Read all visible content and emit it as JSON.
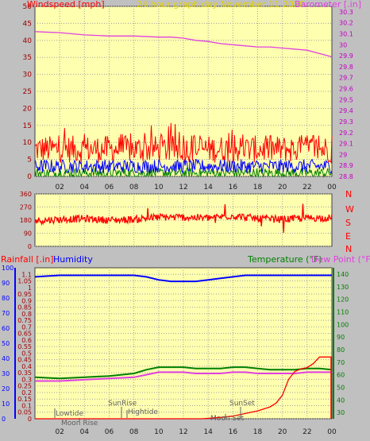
{
  "colors": {
    "page": "#c0c0c0",
    "plot": "#ffffb0",
    "grid": "#a0a0a0",
    "pink": "#e040e0",
    "red": "#ff0000",
    "blue": "#0000ff",
    "green": "#008000",
    "yellow": "#e0d000",
    "darkred": "#a00000",
    "black": "#000000",
    "darkpink": "#c000c0",
    "tick": "#202020",
    "event": "#606060"
  },
  "header": {
    "left": "Windspeed [mph]",
    "center": "24 hour graph day   November 11 2020",
    "right": "Barometer [.in]"
  },
  "direction_labels": [
    "N",
    "W",
    "S",
    "E",
    "N"
  ],
  "bottom_header": {
    "rain": "Rainfall [.in]",
    "humidity": "Humidity",
    "temperature": "Temperature (°F)",
    "dewpoint": "Dew Point (°F)"
  },
  "events": {
    "lowtide": "Lowtide",
    "moonrise": "Moon Rise",
    "sunrise": "SunRise",
    "hightide": "Hightide",
    "sunset": "SunSet",
    "moonset": "Moon Set"
  },
  "chart_data": [
    {
      "type": "line",
      "name": "wind-barometer",
      "x_ticks": [
        "02",
        "04",
        "06",
        "08",
        "10",
        "12",
        "14",
        "16",
        "18",
        "20",
        "22",
        "00"
      ],
      "y_left": {
        "label": "Windspeed [mph]",
        "ticks": [
          "0",
          "5",
          "10",
          "15",
          "20",
          "25",
          "30",
          "35",
          "40",
          "45",
          "50"
        ],
        "range": [
          0,
          50
        ]
      },
      "y_right": {
        "label": "Barometer [.in]",
        "ticks": [
          "28.8",
          "28.9",
          "29",
          "29.1",
          "29.2",
          "29.3",
          "29.4",
          "29.5",
          "29.6",
          "29.7",
          "29.8",
          "29.9",
          "30",
          "30.1",
          "30.2",
          "30.3"
        ],
        "range": [
          28.8,
          30.35
        ]
      },
      "series": [
        {
          "name": "Barometer",
          "color": "#e040e0",
          "axis": "right",
          "x": [
            0,
            2,
            4,
            6,
            8,
            10,
            11,
            12,
            13,
            14,
            15,
            16,
            17,
            18,
            19,
            20,
            21,
            22,
            23,
            24
          ],
          "y": [
            30.12,
            30.11,
            30.09,
            30.08,
            30.08,
            30.07,
            30.07,
            30.06,
            30.04,
            30.03,
            30.01,
            30.0,
            29.99,
            29.98,
            29.98,
            29.97,
            29.96,
            29.95,
            29.92,
            29.89
          ]
        },
        {
          "name": "Wind gust",
          "color": "#ff0000",
          "axis": "left",
          "base": 8,
          "range": 4,
          "peaks": [
            12,
            16,
            14,
            13,
            15,
            16,
            12,
            14,
            13,
            12,
            13,
            12
          ]
        },
        {
          "name": "Wind average",
          "color": "#0000ff",
          "axis": "left",
          "base": 3,
          "range": 2
        },
        {
          "name": "Wind low",
          "color": "#008000",
          "axis": "left",
          "base": 1,
          "range": 1.5
        }
      ],
      "ylim": [
        0,
        50
      ]
    },
    {
      "type": "line",
      "name": "wind-direction",
      "y_ticks": [
        "360",
        "270",
        "180",
        "90",
        "0"
      ],
      "ylim": [
        0,
        360
      ],
      "series": [
        {
          "name": "Wind direction",
          "color": "#ff0000",
          "x": [
            0,
            2,
            4,
            6,
            8,
            10,
            12,
            14,
            16,
            18,
            20,
            22,
            24
          ],
          "y": [
            175,
            185,
            190,
            180,
            185,
            200,
            200,
            195,
            210,
            190,
            185,
            195,
            195
          ]
        }
      ]
    },
    {
      "type": "line",
      "name": "rain-humidity-temperature",
      "x_ticks": [
        "02",
        "04",
        "06",
        "08",
        "10",
        "12",
        "14",
        "16",
        "18",
        "20",
        "22",
        "00"
      ],
      "y_humidity": {
        "ticks": [
          "0",
          "10",
          "20",
          "30",
          "40",
          "50",
          "60",
          "70",
          "80",
          "90",
          "100"
        ],
        "range": [
          0,
          100
        ]
      },
      "y_rain": {
        "ticks": [
          "0",
          "0.05",
          "0.1",
          "0.15",
          "0.2",
          "0.25",
          "0.3",
          "0.35",
          "0.4",
          "0.45",
          "0.5",
          "0.55",
          "0.6",
          "0.65",
          "0.7",
          "0.75",
          "0.8",
          "0.85",
          "0.9",
          "0.95",
          "1",
          "1.05",
          "1.1"
        ],
        "range": [
          0,
          1.15
        ]
      },
      "y_temperature": {
        "ticks": [
          "30",
          "40",
          "50",
          "60",
          "70",
          "80",
          "90",
          "100",
          "110",
          "120",
          "130",
          "140"
        ],
        "range": [
          25,
          145
        ]
      },
      "series": [
        {
          "name": "Humidity",
          "color": "#0000ff",
          "axis": "humidity",
          "x": [
            0,
            2,
            4,
            6,
            8,
            9,
            10,
            11,
            12,
            13,
            14,
            15,
            16,
            17,
            18,
            19,
            20,
            21,
            22,
            23,
            24
          ],
          "y": [
            94,
            95,
            95,
            95,
            95,
            94,
            92,
            91,
            91,
            91,
            92,
            93,
            94,
            95,
            95,
            95,
            95,
            95,
            95,
            95,
            95
          ]
        },
        {
          "name": "Temperature",
          "color": "#008000",
          "axis": "temperature",
          "x": [
            0,
            2,
            4,
            6,
            8,
            9,
            10,
            11,
            12,
            13,
            14,
            15,
            16,
            17,
            18,
            19,
            20,
            21,
            22,
            23,
            24
          ],
          "y": [
            58,
            57,
            58,
            59,
            61,
            64,
            66,
            66,
            66,
            65,
            65,
            65,
            66,
            66,
            65,
            64,
            64,
            64,
            65,
            65,
            64
          ]
        },
        {
          "name": "Dew Point",
          "color": "#e040e0",
          "axis": "temperature",
          "x": [
            0,
            2,
            4,
            6,
            8,
            9,
            10,
            11,
            12,
            13,
            14,
            15,
            16,
            17,
            18,
            19,
            20,
            21,
            22,
            23,
            24
          ],
          "y": [
            55,
            55,
            56,
            57,
            58,
            60,
            62,
            62,
            62,
            61,
            61,
            61,
            62,
            62,
            61,
            61,
            61,
            61,
            62,
            62,
            62
          ]
        },
        {
          "name": "Rainfall",
          "color": "#ff0000",
          "axis": "rain",
          "x": [
            0,
            13.5,
            15,
            16,
            17,
            18,
            19,
            19.5,
            20,
            20.5,
            21,
            21.5,
            22,
            22.5,
            23,
            24
          ],
          "y": [
            0,
            0,
            0.01,
            0.02,
            0.04,
            0.06,
            0.09,
            0.12,
            0.18,
            0.3,
            0.36,
            0.38,
            0.39,
            0.42,
            0.47,
            0.47
          ]
        }
      ]
    }
  ]
}
